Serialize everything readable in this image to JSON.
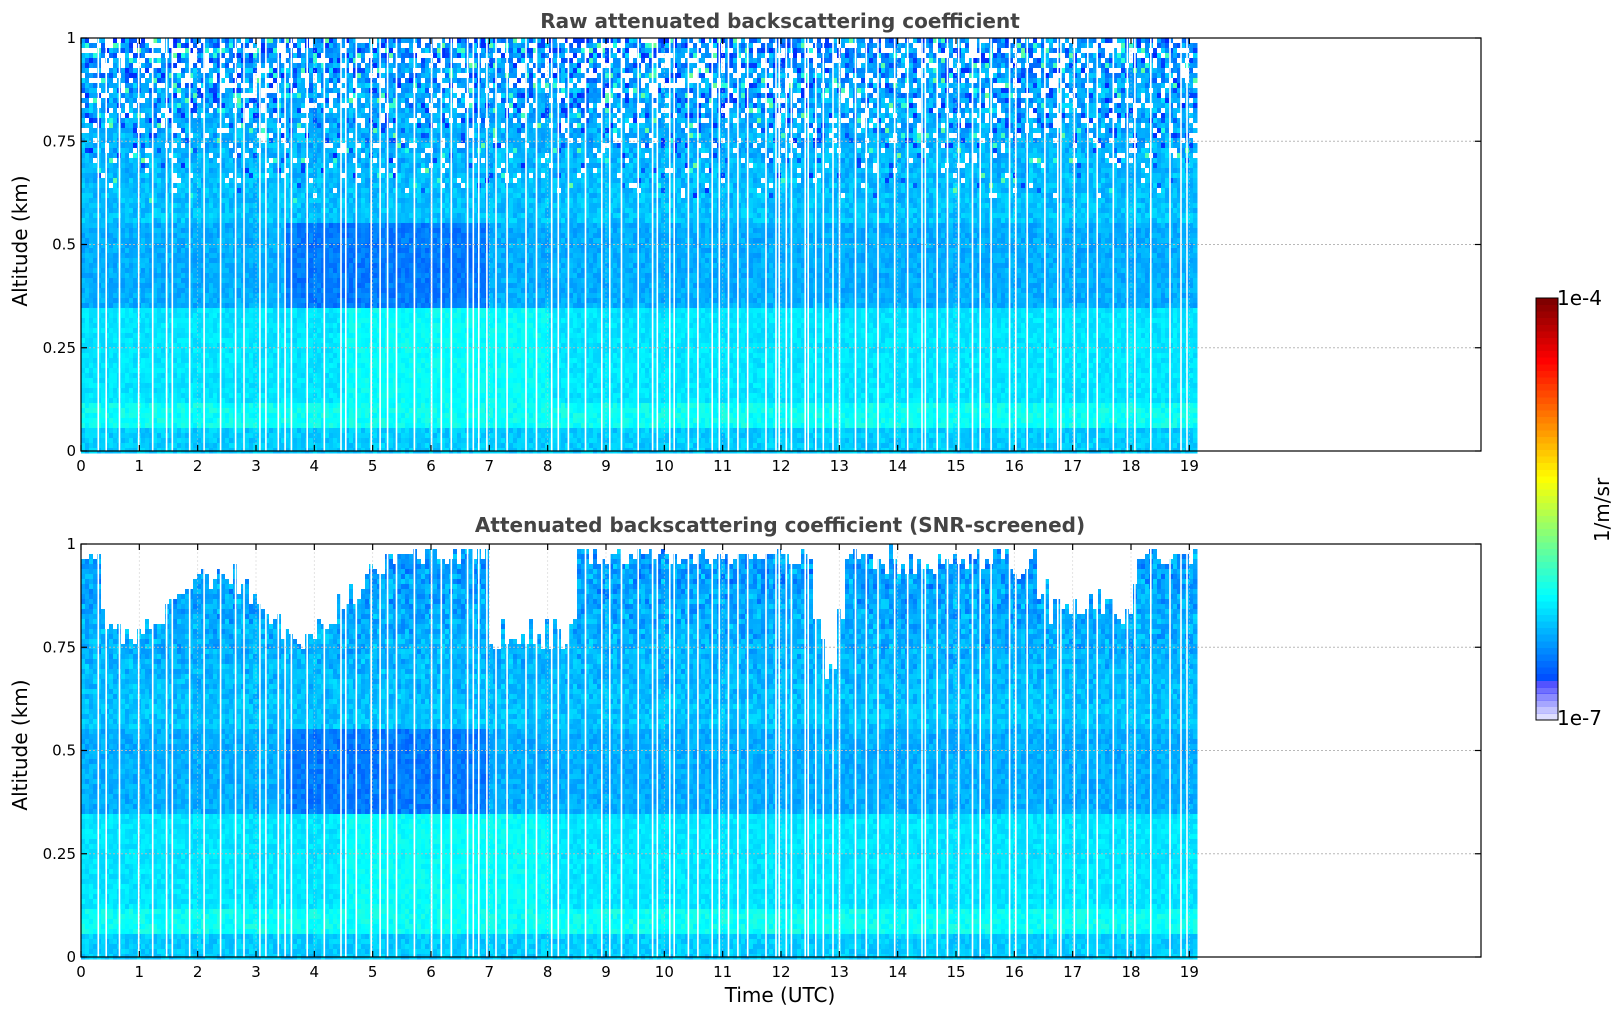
{
  "chart_data": [
    {
      "type": "heatmap",
      "title": "Raw attenuated backscattering coefficient",
      "xlabel": "",
      "ylabel": "Altitude (km)",
      "xlim": [
        0,
        24
      ],
      "ylim": [
        0,
        1
      ],
      "xticks": [
        0,
        1,
        2,
        3,
        4,
        5,
        6,
        7,
        8,
        9,
        10,
        11,
        12,
        13,
        14,
        15,
        16,
        17,
        18,
        19
      ],
      "yticks": [
        0,
        0.25,
        0.5,
        0.75,
        1
      ],
      "ytick_labels": [
        "0",
        "0.25",
        "0.5",
        "0.75",
        "1"
      ],
      "data_extent_x": [
        0,
        19.15
      ],
      "screened": false,
      "grid": true
    },
    {
      "type": "heatmap",
      "title": "Attenuated backscattering coefficient (SNR-screened)",
      "xlabel": "Time (UTC)",
      "ylabel": "Altitude (km)",
      "xlim": [
        0,
        24
      ],
      "ylim": [
        0,
        1
      ],
      "xticks": [
        0,
        1,
        2,
        3,
        4,
        5,
        6,
        7,
        8,
        9,
        10,
        11,
        12,
        13,
        14,
        15,
        16,
        17,
        18,
        19
      ],
      "yticks": [
        0,
        0.25,
        0.5,
        0.75,
        1
      ],
      "ytick_labels": [
        "0",
        "0.25",
        "0.5",
        "0.75",
        "1"
      ],
      "data_extent_x": [
        0,
        19.15
      ],
      "screened": true,
      "grid": true
    }
  ],
  "colorbar": {
    "label": "1/m/sr",
    "min_label": "1e-7",
    "max_label": "1e-4",
    "min": 1e-07,
    "max": 0.0001,
    "scale": "log",
    "colormap": "jet"
  }
}
